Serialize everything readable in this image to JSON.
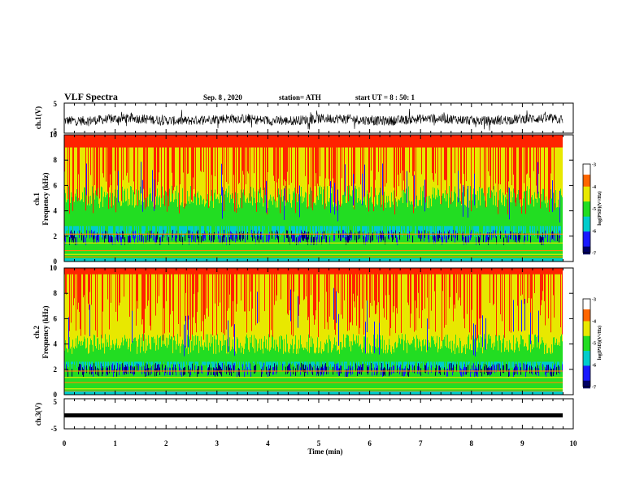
{
  "header": {
    "title": "VLF Spectra",
    "date": "Sep. 8 , 2020",
    "station": "station= ATH",
    "start": "start  UT  =  8 : 50: 1"
  },
  "chart_data": [
    {
      "type": "line",
      "ylabel": "ch.1(V)",
      "ylim": [
        -5,
        5
      ],
      "yticks": [
        "5",
        "-5"
      ],
      "description": "noisy waveform centered near -0.5 V"
    },
    {
      "type": "heatmap",
      "ylabel": "ch.1\nFrequency (kHz)",
      "ylabel_line1": "ch.1",
      "ylabel_line2": "Frequency (kHz)",
      "ylim": [
        0,
        10
      ],
      "yticks": [
        "10",
        "8",
        "6",
        "4",
        "2",
        "0"
      ],
      "colorbar": {
        "label": "log(PSD)(V²/Hz)",
        "range": [
          -7,
          -3
        ],
        "ticks": [
          "-3",
          "-4",
          "-5",
          "-6",
          "-7"
        ]
      }
    },
    {
      "type": "heatmap",
      "ylabel": "ch.2\nFrequency (kHz)",
      "ylabel_line1": "ch.2",
      "ylabel_line2": "Frequency (kHz)",
      "ylim": [
        0,
        10
      ],
      "yticks": [
        "10",
        "8",
        "6",
        "4",
        "2",
        "0"
      ],
      "colorbar": {
        "label": "log(PSD)(V²/Hz)",
        "range": [
          -7,
          -3
        ],
        "ticks": [
          "-3",
          "-4",
          "-5",
          "-6",
          "-7"
        ]
      }
    },
    {
      "type": "line",
      "ylabel": "ch.3(V)",
      "ylim": [
        -5,
        5
      ],
      "yticks": [
        "5",
        "-5"
      ],
      "description": "thick flat trace near -1.5 V"
    }
  ],
  "xaxis": {
    "label": "Time (min)",
    "range": [
      0,
      10
    ],
    "ticks": [
      "0",
      "1",
      "2",
      "3",
      "4",
      "5",
      "6",
      "7",
      "8",
      "9",
      "10"
    ]
  },
  "colors": {
    "red": "#ff2200",
    "yellow": "#e8e800",
    "green": "#22dd22",
    "cyan": "#00cccc",
    "blue": "#1a1aff",
    "navy": "#000066"
  }
}
